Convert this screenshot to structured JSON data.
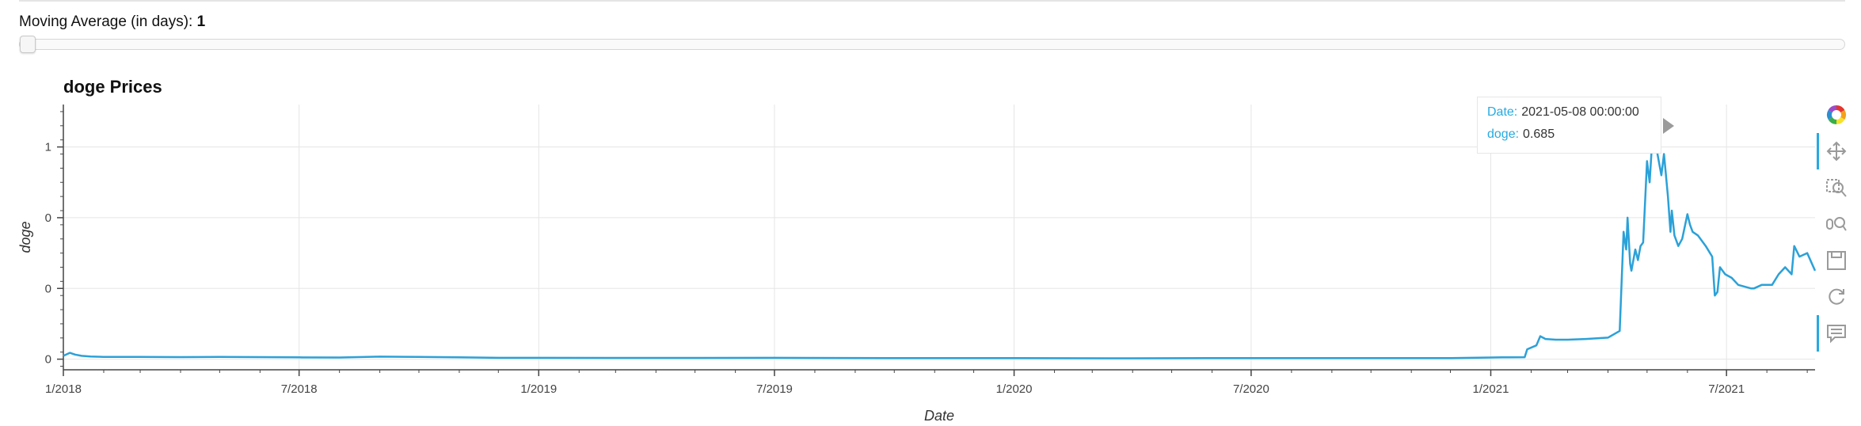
{
  "controls": {
    "moving_average_label": "Moving Average (in days):",
    "moving_average_value": "1",
    "slider_fraction": 0
  },
  "tooltip": {
    "date_key": "Date:",
    "date_value": "2021-05-08 00:00:00",
    "series_key": "doge:",
    "series_value": "0.685"
  },
  "colors": {
    "line": "#2ba1d8",
    "accent": "#26aae1",
    "grid": "#e5e5e5"
  },
  "toolbar": {
    "tools": [
      {
        "icon": "bokeh-logo-icon",
        "active": false
      },
      {
        "icon": "pan-icon",
        "active": true
      },
      {
        "icon": "box-zoom-icon",
        "active": false
      },
      {
        "icon": "wheel-zoom-icon",
        "active": false
      },
      {
        "icon": "save-icon",
        "active": false
      },
      {
        "icon": "reset-icon",
        "active": false
      },
      {
        "icon": "hover-icon",
        "active": true
      }
    ]
  },
  "chart_data": {
    "type": "line",
    "title": "doge Prices",
    "xlabel": "Date",
    "ylabel": "doge",
    "x_range": [
      "2018-01-01",
      "2021-09-07"
    ],
    "ylim": [
      -0.03,
      0.72
    ],
    "y_ticks": [
      0,
      0.2,
      0.4,
      0.6
    ],
    "y_tick_labels": [
      "0",
      "0",
      "0",
      "1"
    ],
    "x_ticks": [
      "2018-01-01",
      "2018-07-01",
      "2019-01-01",
      "2019-07-01",
      "2020-01-01",
      "2020-07-01",
      "2021-01-01",
      "2021-07-01"
    ],
    "x_tick_labels": [
      "1/2018",
      "7/2018",
      "1/2019",
      "7/2019",
      "1/2020",
      "7/2020",
      "1/2021",
      "7/2021"
    ],
    "grid": true,
    "series": [
      {
        "name": "doge",
        "x": [
          "2018-01-01",
          "2018-01-06",
          "2018-01-10",
          "2018-01-15",
          "2018-01-22",
          "2018-02-01",
          "2018-02-15",
          "2018-03-01",
          "2018-04-01",
          "2018-05-01",
          "2018-06-01",
          "2018-07-01",
          "2018-08-01",
          "2018-09-01",
          "2018-10-01",
          "2018-11-01",
          "2018-12-01",
          "2019-01-01",
          "2019-04-01",
          "2019-07-01",
          "2019-10-01",
          "2020-01-01",
          "2020-04-01",
          "2020-07-01",
          "2020-10-01",
          "2020-12-01",
          "2021-01-01",
          "2021-01-10",
          "2021-01-27",
          "2021-01-29",
          "2021-02-05",
          "2021-02-08",
          "2021-02-12",
          "2021-02-20",
          "2021-03-01",
          "2021-03-15",
          "2021-04-01",
          "2021-04-10",
          "2021-04-13",
          "2021-04-15",
          "2021-04-16",
          "2021-04-18",
          "2021-04-19",
          "2021-04-22",
          "2021-04-24",
          "2021-04-26",
          "2021-04-28",
          "2021-05-01",
          "2021-05-03",
          "2021-05-05",
          "2021-05-07",
          "2021-05-08",
          "2021-05-09",
          "2021-05-12",
          "2021-05-14",
          "2021-05-17",
          "2021-05-19",
          "2021-05-20",
          "2021-05-22",
          "2021-05-25",
          "2021-05-28",
          "2021-06-01",
          "2021-06-03",
          "2021-06-05",
          "2021-06-09",
          "2021-06-15",
          "2021-06-20",
          "2021-06-22",
          "2021-06-24",
          "2021-06-26",
          "2021-06-30",
          "2021-07-05",
          "2021-07-10",
          "2021-07-20",
          "2021-07-22",
          "2021-07-28",
          "2021-08-05",
          "2021-08-10",
          "2021-08-15",
          "2021-08-20",
          "2021-08-22",
          "2021-08-26",
          "2021-09-01",
          "2021-09-07"
        ],
        "y": [
          0.0095,
          0.018,
          0.013,
          0.0095,
          0.0075,
          0.0065,
          0.0063,
          0.0065,
          0.0058,
          0.0066,
          0.0058,
          0.0052,
          0.0048,
          0.0072,
          0.0062,
          0.0053,
          0.0037,
          0.0037,
          0.0035,
          0.0037,
          0.0032,
          0.0029,
          0.0025,
          0.0032,
          0.0029,
          0.0032,
          0.0047,
          0.0052,
          0.0055,
          0.028,
          0.039,
          0.065,
          0.057,
          0.055,
          0.055,
          0.057,
          0.061,
          0.08,
          0.36,
          0.31,
          0.4,
          0.27,
          0.25,
          0.31,
          0.28,
          0.32,
          0.33,
          0.56,
          0.5,
          0.62,
          0.67,
          0.685,
          0.58,
          0.52,
          0.58,
          0.46,
          0.36,
          0.42,
          0.35,
          0.32,
          0.34,
          0.41,
          0.38,
          0.36,
          0.35,
          0.32,
          0.29,
          0.18,
          0.19,
          0.26,
          0.24,
          0.23,
          0.21,
          0.2,
          0.2,
          0.21,
          0.21,
          0.24,
          0.26,
          0.24,
          0.32,
          0.29,
          0.3,
          0.25
        ]
      }
    ],
    "hover_point": {
      "x": "2021-05-08",
      "y": 0.685
    }
  }
}
